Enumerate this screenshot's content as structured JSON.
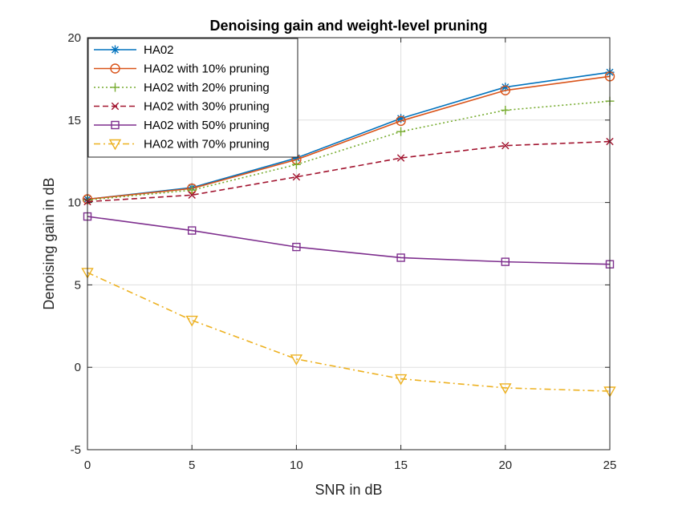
{
  "chart_data": {
    "type": "line",
    "title": "Denoising gain and weight-level pruning",
    "xlabel": "SNR in dB",
    "ylabel": "Denoising gain in dB",
    "x": [
      0,
      5,
      10,
      15,
      20,
      25
    ],
    "xlim": [
      0,
      25
    ],
    "ylim": [
      -5,
      20
    ],
    "xticks": [
      0,
      5,
      10,
      15,
      20,
      25
    ],
    "yticks": [
      -5,
      0,
      5,
      10,
      15,
      20
    ],
    "grid": true,
    "legend_position": "top-left",
    "series": [
      {
        "name": "HA02",
        "color": "#0072BD",
        "marker": "asterisk",
        "dash": "solid",
        "values": [
          10.2,
          10.9,
          12.7,
          15.1,
          17.0,
          17.9
        ]
      },
      {
        "name": "HA02 with 10% pruning",
        "color": "#D95319",
        "marker": "circle",
        "dash": "solid",
        "values": [
          10.2,
          10.85,
          12.6,
          14.95,
          16.8,
          17.65
        ]
      },
      {
        "name": "HA02 with 20% pruning",
        "color": "#77AC30",
        "marker": "plus",
        "dash": "dotted",
        "values": [
          10.15,
          10.75,
          12.3,
          14.3,
          15.6,
          16.15
        ]
      },
      {
        "name": "HA02 with 30% pruning",
        "color": "#A2142F",
        "marker": "x",
        "dash": "dashed",
        "values": [
          10.05,
          10.45,
          11.55,
          12.7,
          13.45,
          13.7
        ]
      },
      {
        "name": "HA02 with 50% pruning",
        "color": "#7E2F8E",
        "marker": "square",
        "dash": "solid",
        "values": [
          9.15,
          8.3,
          7.3,
          6.65,
          6.4,
          6.25
        ]
      },
      {
        "name": "HA02 with 70% pruning",
        "color": "#EDB120",
        "marker": "triangle-down",
        "dash": "dashdot",
        "values": [
          5.75,
          2.85,
          0.5,
          -0.7,
          -1.25,
          -1.45
        ]
      }
    ]
  }
}
